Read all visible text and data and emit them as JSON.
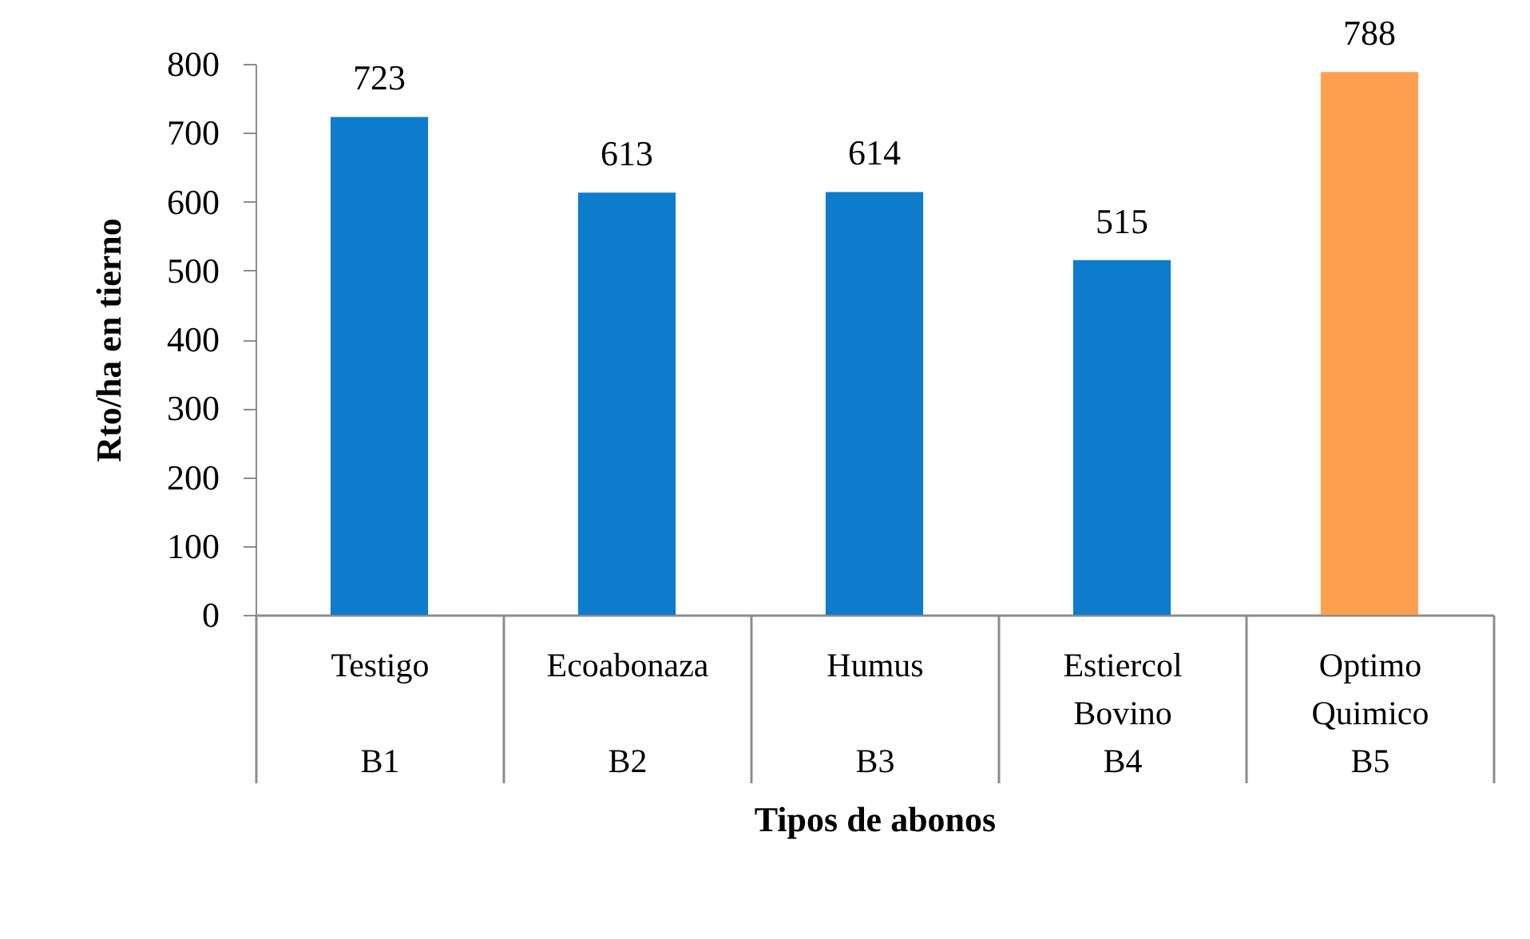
{
  "chart_data": {
    "type": "bar",
    "xlabel": "Tipos de abonos",
    "ylabel": "Rto/ha en tierno",
    "categories": [
      "Testigo\nB1",
      "Ecoabonaza\nB2",
      "Humus\nB3",
      "Estiercol Bovino\nB4",
      "Optimo Quimico\nB5"
    ],
    "values": [
      723,
      613,
      614,
      515,
      788
    ],
    "colors": [
      "#0e7ccc",
      "#0e7ccc",
      "#0e7ccc",
      "#0e7ccc",
      "#ffa050"
    ],
    "ylim": [
      0,
      800
    ],
    "yticks": [
      0,
      100,
      200,
      300,
      400,
      500,
      600,
      700,
      800
    ],
    "grid": false,
    "data_labels": true
  }
}
